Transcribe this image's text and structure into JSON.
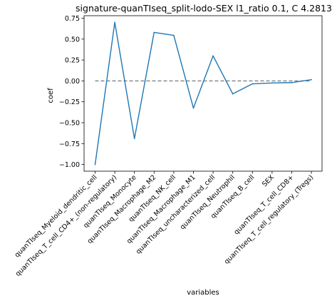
{
  "chart_data": {
    "type": "line",
    "title": "signature-quanTIseq_split-lodo-SEX l1_ratio 0.1, C 4.2813",
    "xlabel": "variables",
    "ylabel": "coef",
    "ylim": [
      -1.08,
      0.78
    ],
    "yticks": [
      -1.0,
      -0.75,
      -0.5,
      -0.25,
      0.0,
      0.25,
      0.5,
      0.75
    ],
    "ytick_labels": [
      "−1.00",
      "−0.75",
      "−0.50",
      "−0.25",
      "0.00",
      "0.25",
      "0.50",
      "0.75"
    ],
    "grid": false,
    "legend": "none",
    "categories": [
      "quanTIseq_Myeloid_dendritic_cell",
      "quanTIseq_T_cell_CD4+_(non-regulatory)",
      "quanTIseq_Monocyte",
      "quanTIseq_Macrophage_M2",
      "quanTIseq_NK_cell",
      "quanTIseq_Macrophage_M1",
      "quanTIseq_uncharacterized_cell",
      "quanTIseq_Neutrophil",
      "quanTIseq_B_cell",
      "SEX",
      "quanTIseq_T_cell_CD8+",
      "quanTIseq_T_cell_regulatory_(Tregs)"
    ],
    "series": [
      {
        "color": "#1f77b4",
        "values": [
          -1.0,
          0.7,
          -0.69,
          0.58,
          0.545,
          -0.325,
          0.3,
          -0.155,
          -0.035,
          -0.025,
          -0.02,
          0.015
        ]
      }
    ],
    "reference_line": {
      "y": 0.0,
      "style": "dashed",
      "color": "#808080"
    }
  }
}
